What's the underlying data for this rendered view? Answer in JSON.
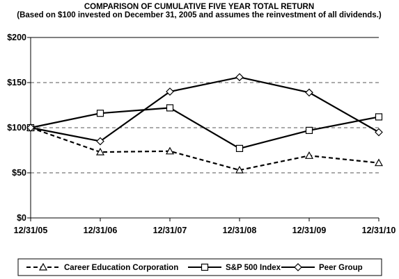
{
  "chart_data": {
    "type": "line",
    "title": "COMPARISON OF CUMULATIVE FIVE YEAR TOTAL RETURN",
    "subtitle": "(Based on $100 invested on December 31, 2005 and assumes the reinvestment of all dividends.)",
    "xlabel": "",
    "ylabel": "",
    "categories": [
      "12/31/05",
      "12/31/06",
      "12/31/07",
      "12/31/08",
      "12/31/09",
      "12/31/10"
    ],
    "y_ticks": [
      "$0",
      "$50",
      "$100",
      "$150",
      "$200"
    ],
    "ylim": [
      0,
      200
    ],
    "grid": "dashed horizontal at 50, 100, 150",
    "legend_position": "bottom",
    "series": [
      {
        "name": "Career Education Corporation",
        "values": [
          100,
          73,
          74,
          53,
          69,
          61
        ],
        "style": "dashed",
        "marker": "triangle",
        "color": "#000000"
      },
      {
        "name": "S&P 500 Index",
        "values": [
          100,
          116,
          122,
          77,
          97,
          112
        ],
        "style": "solid",
        "marker": "square",
        "color": "#000000"
      },
      {
        "name": "Peer Group",
        "values": [
          100,
          85,
          140,
          156,
          139,
          95
        ],
        "style": "solid",
        "marker": "diamond",
        "color": "#000000"
      }
    ]
  }
}
